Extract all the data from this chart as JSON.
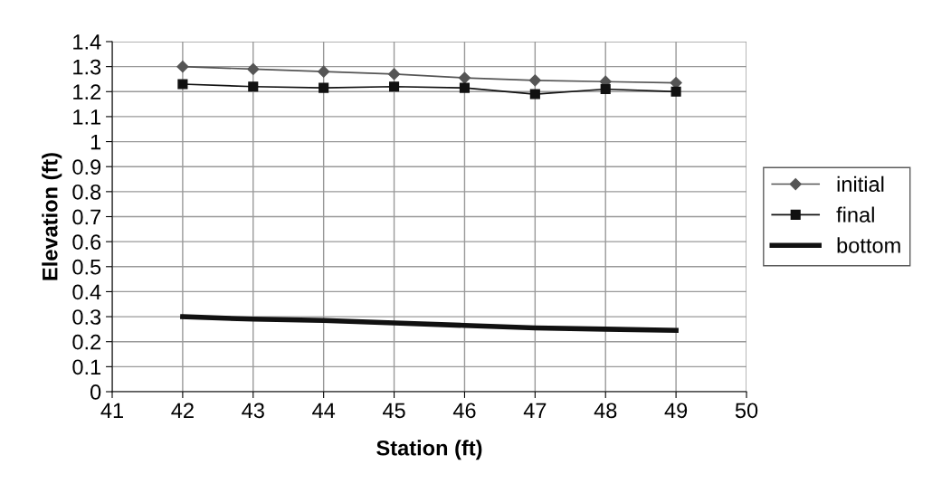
{
  "chart_data": {
    "type": "line",
    "xlabel": "Station (ft)",
    "ylabel": "Elevation (ft)",
    "x": [
      42,
      43,
      44,
      45,
      46,
      47,
      48,
      49
    ],
    "series": [
      {
        "name": "initial",
        "color": "#555555",
        "marker": "diamond",
        "values": [
          1.3,
          1.29,
          1.28,
          1.27,
          1.255,
          1.245,
          1.24,
          1.235
        ]
      },
      {
        "name": "final",
        "color": "#111111",
        "marker": "square",
        "values": [
          1.23,
          1.22,
          1.215,
          1.22,
          1.215,
          1.19,
          1.21,
          1.2
        ]
      },
      {
        "name": "bottom",
        "color": "#111111",
        "marker": "none",
        "values": [
          0.3,
          0.29,
          0.285,
          0.275,
          0.265,
          0.255,
          0.25,
          0.245
        ]
      }
    ],
    "xlim": [
      41,
      50
    ],
    "xticks": [
      41,
      42,
      43,
      44,
      45,
      46,
      47,
      48,
      49,
      50
    ],
    "ylim": [
      0,
      1.4
    ],
    "yticks": [
      0,
      {
        "value": 0.1,
        "label": "0.1"
      },
      {
        "value": 0.2,
        "label": "0.2"
      },
      {
        "value": 0.3,
        "label": "0.3"
      },
      {
        "value": 0.4,
        "label": "0.4"
      },
      {
        "value": 0.5,
        "label": "0.5"
      },
      {
        "value": 0.6,
        "label": "0.6"
      },
      {
        "value": 0.7,
        "label": "0.7"
      },
      {
        "value": 0.8,
        "label": "0.8"
      },
      {
        "value": 0.9,
        "label": "0.9"
      },
      1,
      {
        "value": 1.1,
        "label": "1.1"
      },
      {
        "value": 1.2,
        "label": "1.2"
      },
      {
        "value": 1.3,
        "label": "1.3"
      },
      {
        "value": 1.4,
        "label": "1.4"
      }
    ],
    "grid": true,
    "legend": "right"
  }
}
